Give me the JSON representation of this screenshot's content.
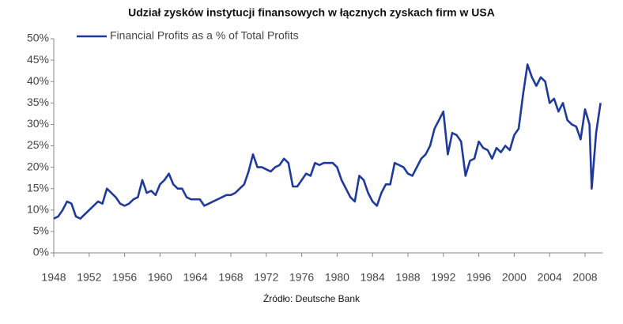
{
  "chart_data": {
    "type": "line",
    "title": "Udział zysków instytucji finansowych w łącznych zyskach firm w USA",
    "source": "Źródło: Deutsche Bank",
    "legend": "top-left",
    "grid": false,
    "xlim": [
      1948,
      2010
    ],
    "xticks": [
      1948,
      1952,
      1956,
      1960,
      1964,
      1968,
      1972,
      1976,
      1980,
      1984,
      1988,
      1992,
      1996,
      2000,
      2004,
      2008
    ],
    "ylim": [
      0,
      50
    ],
    "yticks": [
      {
        "value": 0,
        "label": "0%"
      },
      {
        "value": 5,
        "label": "5%"
      },
      {
        "value": 10,
        "label": "10%"
      },
      {
        "value": 15,
        "label": "15%"
      },
      {
        "value": 20,
        "label": "20%"
      },
      {
        "value": 25,
        "label": "25%"
      },
      {
        "value": 30,
        "label": "30%"
      },
      {
        "value": 35,
        "label": "35%"
      },
      {
        "value": 40,
        "label": "40%"
      },
      {
        "value": 45,
        "label": "45%"
      },
      {
        "value": 50,
        "label": "50%"
      }
    ],
    "x": [
      1948,
      1948.5,
      1949,
      1949.5,
      1950,
      1950.5,
      1951,
      1951.5,
      1952,
      1952.5,
      1953,
      1953.5,
      1954,
      1954.5,
      1955,
      1955.5,
      1956,
      1956.5,
      1957,
      1957.5,
      1958,
      1958.5,
      1959,
      1959.5,
      1960,
      1960.5,
      1961,
      1961.5,
      1962,
      1962.5,
      1963,
      1963.5,
      1964,
      1964.5,
      1965,
      1965.5,
      1966,
      1966.5,
      1967,
      1967.5,
      1968,
      1968.5,
      1969,
      1969.5,
      1970,
      1970.5,
      1971,
      1971.5,
      1972,
      1972.5,
      1973,
      1973.5,
      1974,
      1974.5,
      1975,
      1975.5,
      1976,
      1976.5,
      1977,
      1977.5,
      1978,
      1978.5,
      1979,
      1979.5,
      1980,
      1980.5,
      1981,
      1981.5,
      1982,
      1982.5,
      1983,
      1983.5,
      1984,
      1984.5,
      1985,
      1985.5,
      1986,
      1986.5,
      1987,
      1987.5,
      1988,
      1988.5,
      1989,
      1989.5,
      1990,
      1990.5,
      1991,
      1991.5,
      1992,
      1992.5,
      1993,
      1993.5,
      1994,
      1994.5,
      1995,
      1995.5,
      1996,
      1996.5,
      1997,
      1997.5,
      1998,
      1998.5,
      1999,
      1999.5,
      2000,
      2000.5,
      2001,
      2001.5,
      2002,
      2002.5,
      2003,
      2003.5,
      2004,
      2004.5,
      2005,
      2005.5,
      2006,
      2006.5,
      2007,
      2007.5,
      2008,
      2008.5,
      2008.75,
      2009.25,
      2009.75
    ],
    "series": [
      {
        "name": "Financial Profits as a % of Total Profits",
        "color": "#1f3a9a",
        "values": [
          8,
          8.5,
          10,
          12,
          11.5,
          8.5,
          8,
          9,
          10,
          11,
          12,
          11.5,
          15,
          14,
          13,
          11.5,
          11,
          11.5,
          12.5,
          13,
          17,
          14,
          14.5,
          13.5,
          16,
          17,
          18.5,
          16,
          15,
          15,
          13,
          12.5,
          12.5,
          12.5,
          11,
          11.5,
          12,
          12.5,
          13,
          13.5,
          13.5,
          14,
          15,
          16,
          19,
          23,
          20,
          20,
          19.5,
          19,
          20,
          20.5,
          22,
          21,
          15.5,
          15.5,
          17,
          18.5,
          18,
          21,
          20.5,
          21,
          21,
          21,
          20,
          17,
          15,
          13,
          12,
          18,
          17,
          14,
          12,
          11,
          14,
          16,
          16,
          21,
          20.5,
          20,
          18.5,
          18,
          20,
          22,
          23,
          25,
          29,
          31,
          33,
          23,
          28,
          27.5,
          26,
          18,
          21.5,
          22,
          26,
          24.5,
          24,
          22,
          24.5,
          23.5,
          25,
          24,
          27.5,
          29,
          37,
          44,
          41,
          39,
          41,
          40,
          35,
          36,
          33,
          35,
          31,
          30,
          29.5,
          26.5,
          33.5,
          30,
          15,
          28,
          35
        ]
      }
    ]
  }
}
